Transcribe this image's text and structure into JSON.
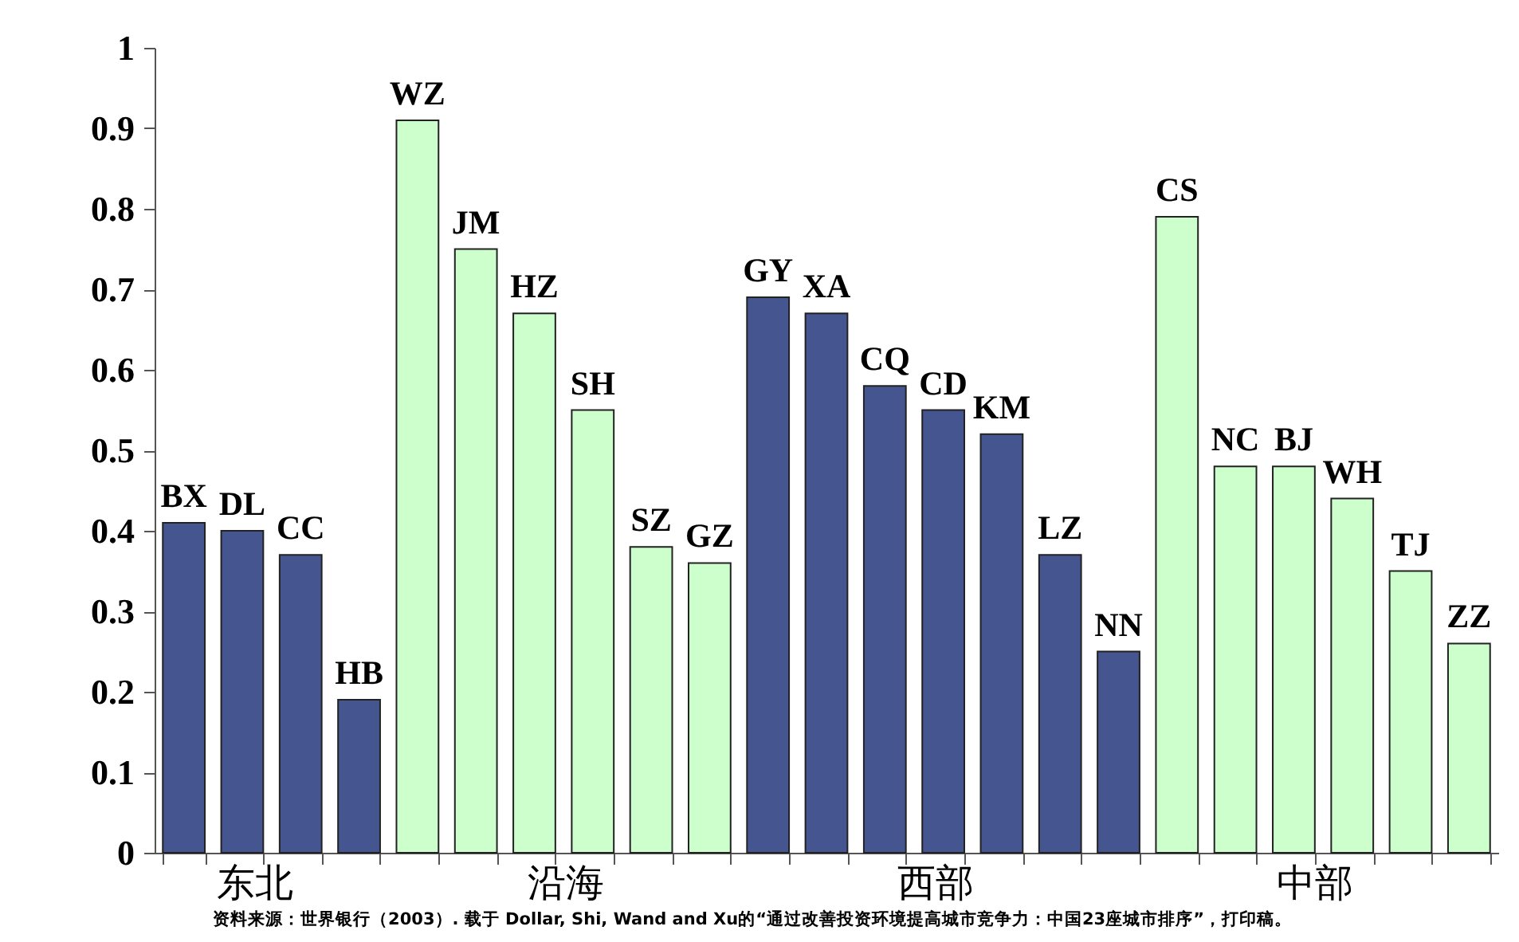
{
  "chart_data": {
    "type": "bar",
    "categories": [
      "BX",
      "DL",
      "CC",
      "HB",
      "WZ",
      "JM",
      "HZ",
      "SH",
      "SZ",
      "GZ",
      "GY",
      "XA",
      "CQ",
      "CD",
      "KM",
      "LZ",
      "NN",
      "CS",
      "NC",
      "BJ",
      "WH",
      "TJ",
      "ZZ"
    ],
    "values": [
      0.41,
      0.4,
      0.37,
      0.19,
      0.91,
      0.75,
      0.67,
      0.55,
      0.38,
      0.36,
      0.69,
      0.67,
      0.58,
      0.55,
      0.52,
      0.37,
      0.25,
      0.79,
      0.48,
      0.48,
      0.44,
      0.35,
      0.26
    ],
    "colors": [
      "#44558f",
      "#44558f",
      "#44558f",
      "#44558f",
      "#ccffcc",
      "#ccffcc",
      "#ccffcc",
      "#ccffcc",
      "#ccffcc",
      "#ccffcc",
      "#44558f",
      "#44558f",
      "#44558f",
      "#44558f",
      "#44558f",
      "#44558f",
      "#44558f",
      "#ccffcc",
      "#ccffcc",
      "#ccffcc",
      "#ccffcc",
      "#ccffcc",
      "#ccffcc"
    ],
    "ylim": [
      0,
      1
    ],
    "yticks": [
      0,
      0.1,
      0.2,
      0.3,
      0.4,
      0.5,
      0.6,
      0.7,
      0.8,
      0.9,
      1
    ],
    "grid": false,
    "annotations": [
      "东北",
      "沿海",
      "西部",
      "中部",
      "资料来源：世界银行（2003）. 载于 Dollar, Shi, Wand and Xu的“通过改善投资环境提高城市竞争力：中国23座城市排序”，打印稿。"
    ]
  }
}
